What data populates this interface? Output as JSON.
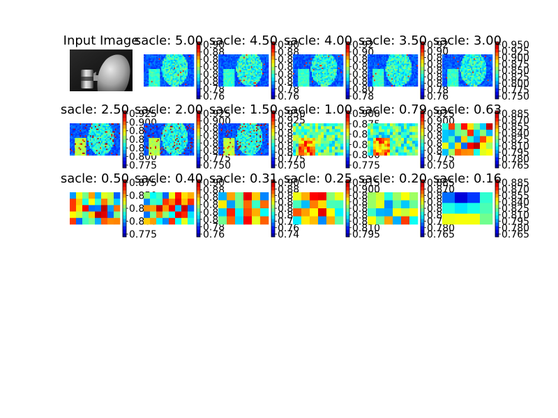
{
  "chart_data": {
    "type": "heatmap",
    "colormap": "jet",
    "input": {
      "title": "Input Image"
    },
    "panels": [
      {
        "title": "sacle: 5.00",
        "ticks": [
          "0.90",
          "0.88",
          "0.86",
          "0.84",
          "0.82",
          "0.80",
          "0.78",
          "0.76"
        ],
        "pattern": "face"
      },
      {
        "title": "sacle: 4.50",
        "ticks": [
          "0.90",
          "0.88",
          "0.86",
          "0.84",
          "0.82",
          "0.80",
          "0.78",
          "0.76"
        ],
        "pattern": "face"
      },
      {
        "title": "sacle: 4.00",
        "ticks": [
          "0.92",
          "0.90",
          "0.88",
          "0.86",
          "0.84",
          "0.82",
          "0.80",
          "0.78"
        ],
        "pattern": "face"
      },
      {
        "title": "sacle: 3.50",
        "ticks": [
          "0.92",
          "0.90",
          "0.88",
          "0.86",
          "0.84",
          "0.82",
          "0.80",
          "0.78",
          "0.76"
        ],
        "pattern": "face"
      },
      {
        "title": "sacle: 3.00",
        "ticks": [
          "0.950",
          "0.925",
          "0.900",
          "0.875",
          "0.850",
          "0.825",
          "0.800",
          "0.775",
          "0.750"
        ],
        "pattern": "face"
      },
      {
        "title": "sacle: 2.50",
        "ticks": [
          "0.925",
          "0.900",
          "0.875",
          "0.850",
          "0.825",
          "0.800",
          "0.775"
        ],
        "pattern": "face2"
      },
      {
        "title": "sacle: 2.00",
        "ticks": [
          "0.925",
          "0.900",
          "0.875",
          "0.850",
          "0.825",
          "0.800",
          "0.775",
          "0.750"
        ],
        "pattern": "face2"
      },
      {
        "title": "sacle: 1.50",
        "ticks": [
          "0.950",
          "0.925",
          "0.900",
          "0.875",
          "0.850",
          "0.825",
          "0.800",
          "0.775",
          "0.750"
        ],
        "pattern": "face2"
      },
      {
        "title": "sacle: 1.00",
        "ticks": [
          "0.900",
          "0.875",
          "0.850",
          "0.825",
          "0.800",
          "0.775"
        ],
        "pattern": "mid"
      },
      {
        "title": "sacle: 0.79",
        "ticks": [
          "0.925",
          "0.900",
          "0.875",
          "0.850",
          "0.825",
          "0.800",
          "0.775",
          "0.750"
        ],
        "pattern": "mid"
      },
      {
        "title": "sacle: 0.63",
        "ticks": [
          "0.885",
          "0.870",
          "0.855",
          "0.840",
          "0.825",
          "0.810",
          "0.795",
          "0.780",
          "0.765"
        ],
        "pattern": "blocky"
      },
      {
        "title": "sacle: 0.50",
        "ticks": [
          "0.875",
          "0.850",
          "0.825",
          "0.800",
          "0.775"
        ],
        "pattern": "blocky"
      },
      {
        "title": "sacle: 0.40",
        "ticks": [
          "0.90",
          "0.88",
          "0.86",
          "0.84",
          "0.82",
          "0.80",
          "0.78",
          "0.76"
        ],
        "pattern": "blocky"
      },
      {
        "title": "sacle: 0.31",
        "ticks": [
          "0.90",
          "0.88",
          "0.86",
          "0.84",
          "0.82",
          "0.80",
          "0.78",
          "0.76",
          "0.74"
        ],
        "pattern": "coarse"
      },
      {
        "title": "sacle: 0.25",
        "ticks": [
          "0.915",
          "0.900",
          "0.885",
          "0.870",
          "0.855",
          "0.840",
          "0.825",
          "0.810",
          "0.795"
        ],
        "pattern": "coarse"
      },
      {
        "title": "sacle: 0.20",
        "ticks": [
          "0.885",
          "0.870",
          "0.855",
          "0.840",
          "0.825",
          "0.810",
          "0.795",
          "0.780",
          "0.765"
        ],
        "pattern": "coarse"
      },
      {
        "title": "sacle: 0.16",
        "ticks": [
          "0.885",
          "0.870",
          "0.855",
          "0.840",
          "0.825",
          "0.810",
          "0.795",
          "0.780",
          "0.765"
        ],
        "pattern": "smooth"
      }
    ]
  }
}
